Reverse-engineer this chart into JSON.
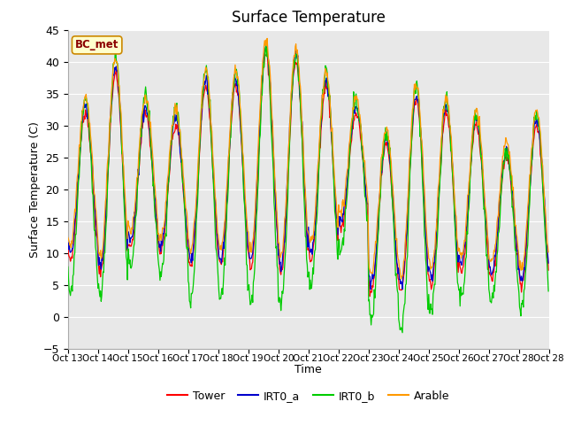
{
  "title": "Surface Temperature",
  "xlabel": "Time",
  "ylabel": "Surface Temperature (C)",
  "ylim": [
    -5,
    45
  ],
  "annotation": "BC_met",
  "legend": [
    "Tower",
    "IRT0_a",
    "IRT0_b",
    "Arable"
  ],
  "line_colors": [
    "#ff0000",
    "#0000cc",
    "#00cc00",
    "#ff9900"
  ],
  "xtick_labels": [
    "Oct 13",
    "Oct 14",
    "Oct 15",
    "Oct 16",
    "Oct 17",
    "Oct 18",
    "Oct 19",
    "Oct 20",
    "Oct 21",
    "Oct 22",
    "Oct 23",
    "Oct 24",
    "Oct 25",
    "Oct 26",
    "Oct 27",
    "Oct 28"
  ],
  "fig_bg_color": "#ffffff",
  "plot_bg_color": "#e8e8e8",
  "yticks": [
    -5,
    0,
    5,
    10,
    15,
    20,
    25,
    30,
    35,
    40,
    45
  ],
  "day_peaks_tower": [
    32,
    38,
    32,
    30,
    36,
    36,
    41,
    40,
    36,
    32,
    27,
    34,
    32,
    30,
    25,
    30
  ],
  "day_mins_tower": [
    9,
    7,
    11,
    10,
    8,
    8,
    8,
    7,
    9,
    14,
    4,
    4,
    5,
    7,
    6,
    5
  ],
  "day_peaks_irt0b": [
    34,
    41,
    35,
    33,
    39,
    39,
    42,
    41,
    39,
    34,
    29,
    36,
    34,
    32,
    26,
    32
  ],
  "day_mins_irt0b": [
    4,
    3,
    8,
    7,
    3,
    3,
    2,
    2,
    5,
    11,
    0,
    -3,
    1,
    3,
    2,
    1
  ]
}
